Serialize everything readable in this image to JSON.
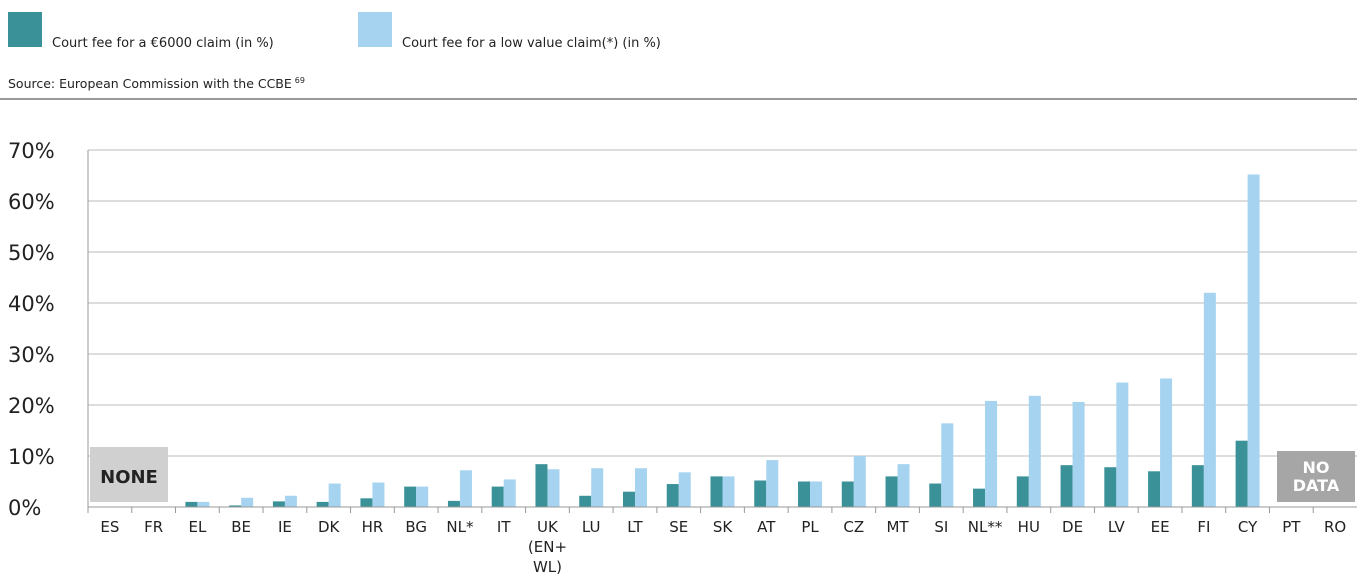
{
  "chart_data": {
    "type": "bar",
    "source": "Source: European Commission with the CCBE",
    "source_note": "69",
    "categories": [
      "ES",
      "FR",
      "EL",
      "BE",
      "IE",
      "DK",
      "HR",
      "BG",
      "NL*",
      "IT",
      "UK (EN+ WL)",
      "LU",
      "LT",
      "SE",
      "SK",
      "AT",
      "PL",
      "CZ",
      "MT",
      "SI",
      "NL**",
      "HU",
      "DE",
      "LV",
      "EE",
      "FI",
      "CY",
      "PT",
      "RO"
    ],
    "series": [
      {
        "name": "Court fee for a €6000 claim (in %)",
        "color": "#3a9197",
        "values": [
          null,
          null,
          1,
          0.3,
          1.1,
          1,
          1.7,
          4,
          1.2,
          4,
          8.4,
          2.2,
          3,
          4.5,
          6,
          5.2,
          5,
          5,
          6,
          4.6,
          3.6,
          6,
          8.2,
          7.8,
          7,
          8.2,
          13,
          null,
          null
        ]
      },
      {
        "name": "Court fee for a low value claim(*) (in %)",
        "color": "#a6d3f0",
        "values": [
          null,
          null,
          1,
          1.8,
          2.2,
          4.6,
          4.8,
          4,
          7.2,
          5.4,
          7.4,
          7.6,
          7.6,
          6.8,
          6,
          9.2,
          5,
          10,
          8.4,
          16.4,
          20.8,
          21.8,
          20.6,
          24.4,
          25.2,
          42,
          65.2,
          null,
          null
        ]
      }
    ],
    "annotations": [
      "NONE",
      "NO DATA"
    ],
    "ylim": [
      0,
      70
    ],
    "yticks": [
      {
        "value": 0,
        "label": "0%"
      },
      {
        "value": 10,
        "label": "10%"
      },
      {
        "value": 20,
        "label": "20%"
      },
      {
        "value": 30,
        "label": "30%"
      },
      {
        "value": 40,
        "label": "40%"
      },
      {
        "value": 50,
        "label": "50%"
      },
      {
        "value": 60,
        "label": "60%"
      },
      {
        "value": 70,
        "label": "70%"
      }
    ],
    "grid": true
  }
}
